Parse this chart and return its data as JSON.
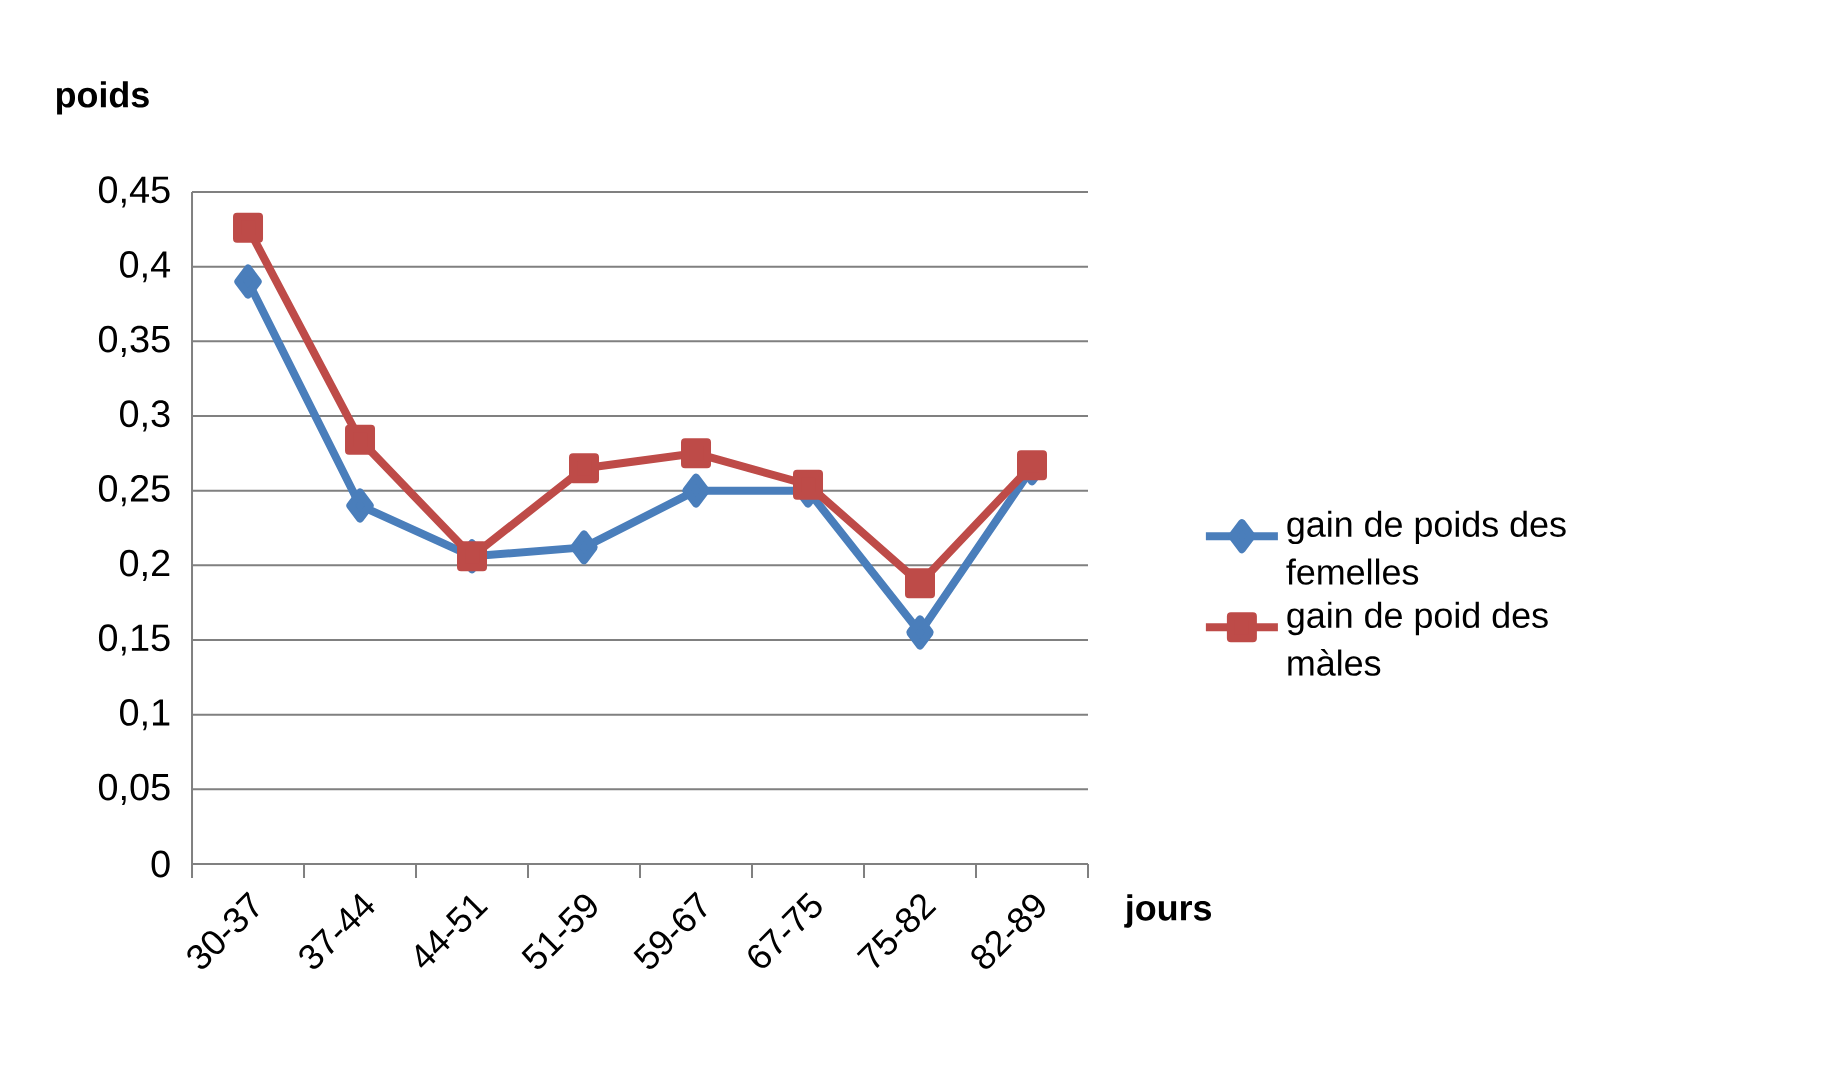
{
  "chart_data": {
    "type": "line",
    "xlabel": "jours",
    "ylabel": "poids",
    "categories": [
      "30-37",
      "37-44",
      "44-51",
      "51-59",
      "59-67",
      "67-75",
      "75-82",
      "82-89"
    ],
    "series": [
      {
        "name": "gain de poids des femelles",
        "color": "#4a7ebb",
        "marker": "diamond",
        "values": [
          0.39,
          0.24,
          0.206,
          0.212,
          0.25,
          0.25,
          0.155,
          0.265
        ]
      },
      {
        "name": "gain de poid des màles",
        "color": "#be4b48",
        "marker": "square",
        "values": [
          0.426,
          0.284,
          0.206,
          0.265,
          0.275,
          0.254,
          0.188,
          0.267
        ]
      }
    ],
    "ylim": [
      0,
      0.45
    ],
    "yticks": [
      0,
      {
        "value": 0.05,
        "label": "0,05"
      },
      {
        "value": 0.1,
        "label": "0,1"
      },
      {
        "value": 0.15,
        "label": "0,15"
      },
      {
        "value": 0.2,
        "label": "0,2"
      },
      {
        "value": 0.25,
        "label": "0,25"
      },
      {
        "value": 0.3,
        "label": "0,3"
      },
      {
        "value": 0.35,
        "label": "0,35"
      },
      {
        "value": 0.4,
        "label": "0,4"
      },
      {
        "value": 0.45,
        "label": "0,45"
      }
    ],
    "grid": "y",
    "legend": "right",
    "line_style": "solid"
  }
}
